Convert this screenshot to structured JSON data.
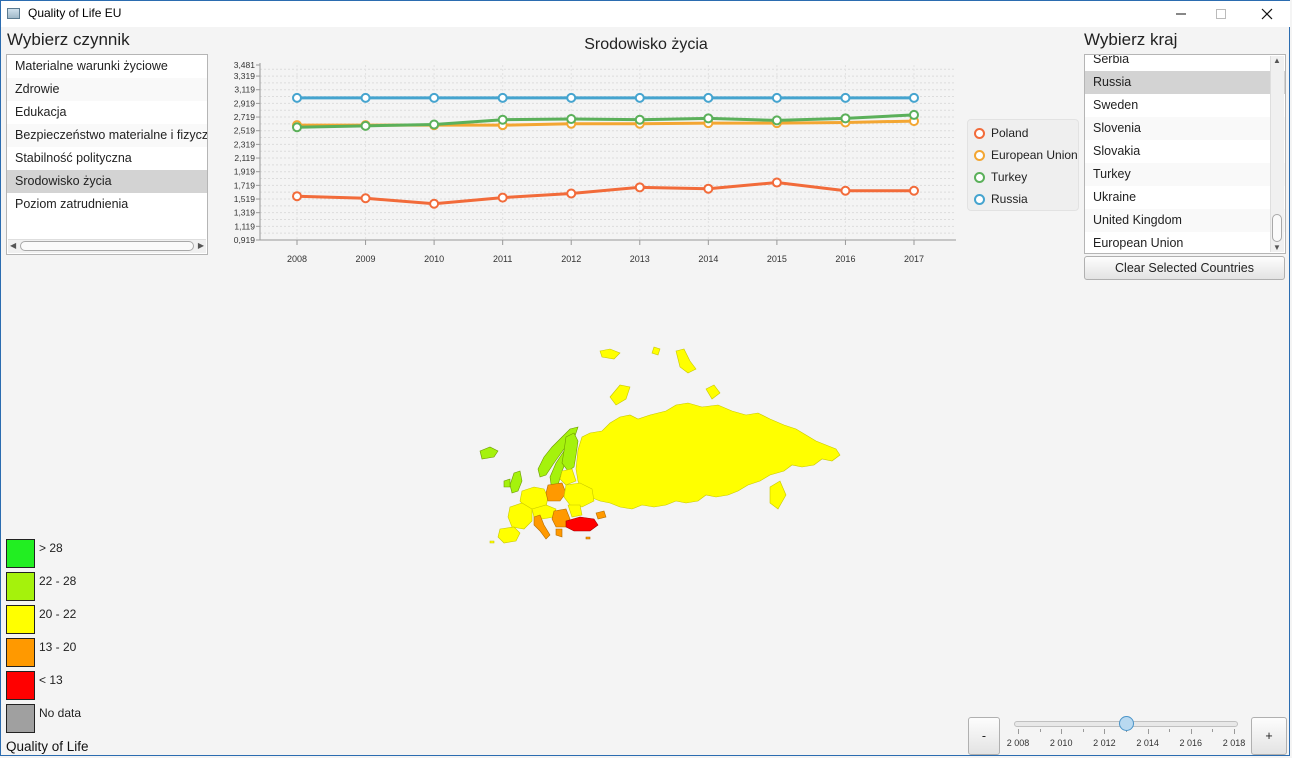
{
  "window": {
    "title": "Quality of Life EU"
  },
  "left_panel": {
    "label": "Wybierz czynnik",
    "items": [
      {
        "label": "Materialne warunki życiowe"
      },
      {
        "label": "Zdrowie"
      },
      {
        "label": "Edukacja"
      },
      {
        "label": "Bezpieczeństwo materialne i fizyczne"
      },
      {
        "label": "Stabilność polityczna"
      },
      {
        "label": "Srodowisko życia"
      },
      {
        "label": "Poziom zatrudnienia"
      }
    ],
    "selected": "Srodowisko życia"
  },
  "right_panel": {
    "label": "Wybierz kraj",
    "items": [
      {
        "label": "Serbia"
      },
      {
        "label": "Russia"
      },
      {
        "label": "Sweden"
      },
      {
        "label": "Slovenia"
      },
      {
        "label": "Slovakia"
      },
      {
        "label": "Turkey"
      },
      {
        "label": "Ukraine"
      },
      {
        "label": "United Kingdom"
      },
      {
        "label": "European Union"
      }
    ],
    "selected": "Russia",
    "clear_button": "Clear Selected Countries"
  },
  "chart_data": {
    "type": "line",
    "title": "Srodowisko życia",
    "x": [
      "2008",
      "2009",
      "2010",
      "2011",
      "2012",
      "2013",
      "2014",
      "2015",
      "2016",
      "2017"
    ],
    "y_ticks": [
      "3,481",
      "3,319",
      "3,119",
      "2,919",
      "2,719",
      "2,519",
      "2,319",
      "2,119",
      "1,919",
      "1,719",
      "1,519",
      "1,319",
      "1,119",
      "0,919"
    ],
    "ylim": [
      0.919,
      3.481
    ],
    "series": [
      {
        "name": "Poland",
        "color": "#f26b3a",
        "values": [
          1.56,
          1.53,
          1.45,
          1.54,
          1.6,
          1.69,
          1.67,
          1.76,
          1.64,
          1.64
        ]
      },
      {
        "name": "European Union",
        "color": "#f3a632",
        "values": [
          2.6,
          2.6,
          2.6,
          2.6,
          2.62,
          2.62,
          2.63,
          2.63,
          2.64,
          2.66
        ]
      },
      {
        "name": "Turkey",
        "color": "#5bb05a",
        "values": [
          2.57,
          2.59,
          2.61,
          2.68,
          2.69,
          2.68,
          2.7,
          2.67,
          2.7,
          2.75
        ]
      },
      {
        "name": "Russia",
        "color": "#45a4cf",
        "values": [
          3.0,
          3.0,
          3.0,
          3.0,
          3.0,
          3.0,
          3.0,
          3.0,
          3.0,
          3.0
        ]
      }
    ],
    "legend": "right"
  },
  "map": {
    "colors": {
      "green": "#22ee22",
      "lime": "#a5f20c",
      "yellow": "#ffff00",
      "orange": "#ff9900",
      "red": "#ff0000",
      "gray": "#a0a0a0"
    }
  },
  "scale_legend": {
    "items": [
      {
        "label": "> 28",
        "color": "#22ee22"
      },
      {
        "label": "22 - 28",
        "color": "#a5f20c"
      },
      {
        "label": "20 - 22",
        "color": "#ffff00"
      },
      {
        "label": "13 - 20",
        "color": "#ff9900"
      },
      {
        "label": "< 13",
        "color": "#ff0000"
      },
      {
        "label": "No data",
        "color": "#a0a0a0"
      }
    ],
    "caption": "Quality of Life"
  },
  "year_slider": {
    "minus": "-",
    "plus": "+",
    "tick_labels": [
      "2 008",
      "2 010",
      "2 012",
      "2 014",
      "2 016",
      "2 018"
    ],
    "min": 2008,
    "max": 2018,
    "value": 2013
  }
}
